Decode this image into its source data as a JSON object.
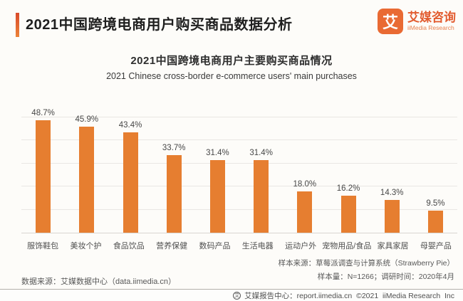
{
  "header": {
    "title": "2021中国跨境电商用户购买商品数据分析",
    "logo": {
      "mark": "艾",
      "name_cn": "艾媒咨询",
      "name_en": "iiMedia Research"
    }
  },
  "chart_data": {
    "type": "bar",
    "title": "2021中国跨境电商用户主要购买商品情况",
    "subtitle": "2021 Chinese cross-border e-commerce users' main purchases",
    "categories": [
      "服饰鞋包",
      "美妆个护",
      "食品饮品",
      "营养保健",
      "数码产品",
      "生活电器",
      "运动户外",
      "宠物用品/食品",
      "家具家居",
      "母婴产品"
    ],
    "values": [
      48.7,
      45.9,
      43.4,
      33.7,
      31.4,
      31.4,
      18.0,
      16.2,
      14.3,
      9.5
    ],
    "value_labels": [
      "48.7%",
      "45.9%",
      "43.4%",
      "33.7%",
      "31.4%",
      "31.4%",
      "18.0%",
      "16.2%",
      "14.3%",
      "9.5%"
    ],
    "ylim": [
      0,
      50
    ],
    "grid_step": 10,
    "grid": true,
    "legend": "none",
    "bar_color": "#E67E30"
  },
  "footnotes": {
    "sample_source": "样本来源：草莓派调查与计算系统（Strawberry Pie）",
    "sample_size": "样本量：N=1266；调研时间：2020年4月",
    "data_source": "数据来源：艾媒数据中心（data.iimedia.cn）"
  },
  "footer": {
    "text": "艾媒报告中心：report.iimedia.cn  ©2021  iiMedia Research  Inc"
  }
}
